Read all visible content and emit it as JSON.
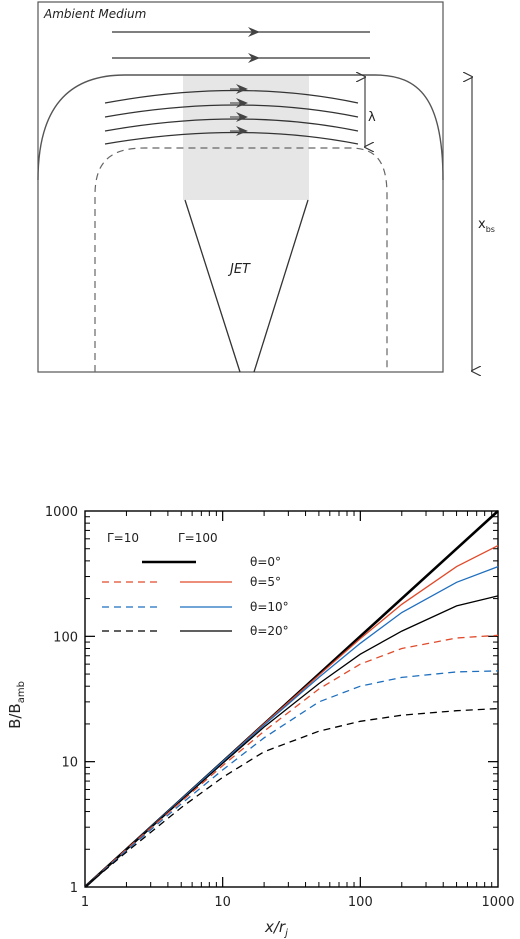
{
  "diagram": {
    "ambient_label": "Ambient Medium",
    "jet_label": "JET",
    "lambda_label": "λ",
    "xbs_label": "x",
    "xbs_sub": "bs"
  },
  "chart_data": {
    "type": "line",
    "xscale": "log",
    "yscale": "log",
    "xlim": [
      1,
      1000
    ],
    "ylim": [
      1,
      1000
    ],
    "xlabel": "x/r",
    "xlabel_sub": "j",
    "ylabel": "B/B",
    "ylabel_sub": "amb",
    "xticks": [
      "1",
      "10",
      "100",
      "1000"
    ],
    "yticks": [
      "1",
      "10",
      "100",
      "1000"
    ],
    "legend": {
      "header_left": "Γ=10",
      "header_right": "Γ=100",
      "rows": [
        "θ=0°",
        "θ=5°",
        "θ=10°",
        "θ=20°"
      ]
    },
    "colors": {
      "theta0": "#000000",
      "theta5": "#e04a2a",
      "theta10": "#1f6fbf",
      "theta20": "#000000"
    },
    "x": [
      1,
      2,
      5,
      10,
      20,
      50,
      100,
      200,
      500,
      1000
    ],
    "series": [
      {
        "gamma": 100,
        "theta": 0,
        "values": [
          1,
          2.0,
          5.0,
          10,
          20,
          50,
          100,
          200,
          500,
          1000
        ]
      },
      {
        "gamma": 100,
        "theta": 5,
        "values": [
          1,
          2.0,
          5.0,
          10,
          20,
          49,
          96,
          180,
          360,
          530
        ]
      },
      {
        "gamma": 100,
        "theta": 10,
        "values": [
          1,
          2.0,
          5.0,
          10,
          19.6,
          47,
          88,
          155,
          270,
          360
        ]
      },
      {
        "gamma": 100,
        "theta": 20,
        "values": [
          1,
          2.0,
          4.9,
          9.7,
          18.9,
          42,
          72,
          110,
          175,
          210
        ]
      },
      {
        "gamma": 10,
        "theta": 5,
        "values": [
          1,
          2.0,
          4.8,
          9.3,
          17.5,
          38,
          60,
          80,
          97,
          102
        ]
      },
      {
        "gamma": 10,
        "theta": 10,
        "values": [
          1,
          1.95,
          4.6,
          8.6,
          15.5,
          30,
          40,
          47,
          52,
          53
        ]
      },
      {
        "gamma": 10,
        "theta": 20,
        "values": [
          1,
          1.9,
          4.3,
          7.5,
          12,
          17.5,
          21,
          23.5,
          25.5,
          26.5
        ]
      }
    ]
  }
}
